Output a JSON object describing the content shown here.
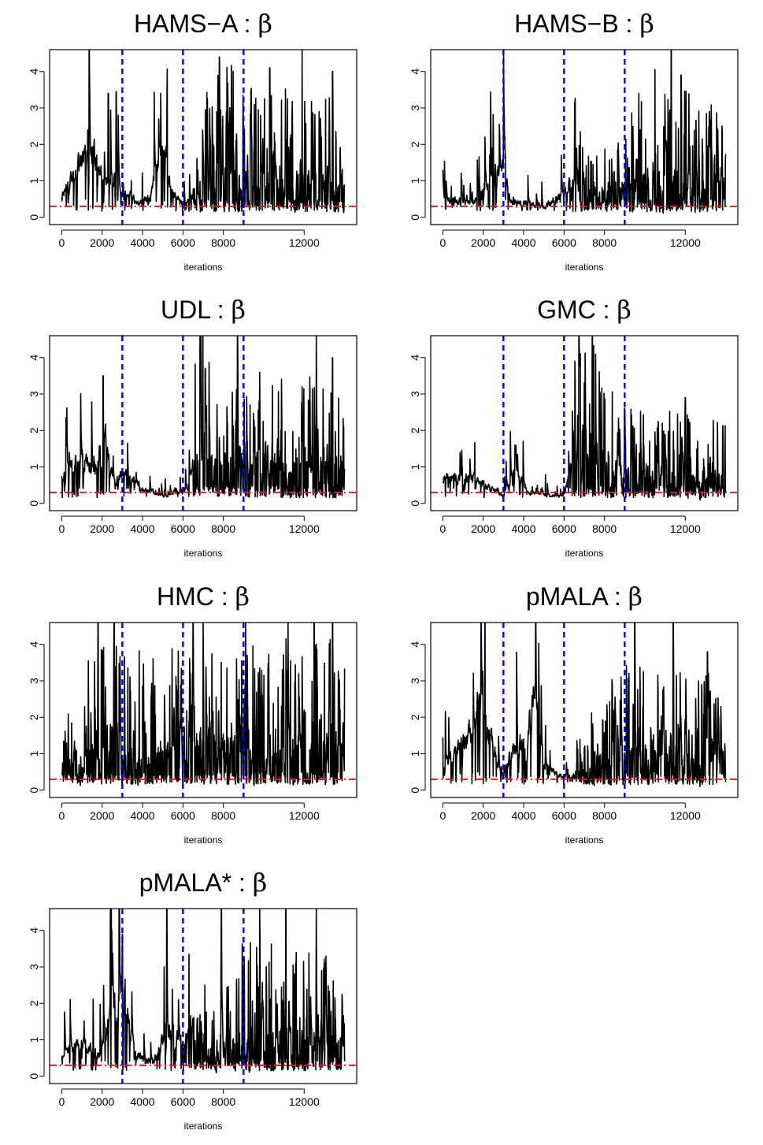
{
  "figure": {
    "type": "mcmc-trace-plots",
    "ref_line_color": "#e41a1c",
    "vline_color": "#0000ee",
    "trace_color": "#000000"
  },
  "chart_data": [
    {
      "type": "line",
      "title_prefix": "HAMS−A : ",
      "title_symbol": "β",
      "xlabel": "iterations",
      "ylabel": "",
      "xlim": [
        -600,
        14600
      ],
      "ylim": [
        -0.2,
        4.6
      ],
      "x_ticks": [
        0,
        2000,
        4000,
        6000,
        8000,
        12000
      ],
      "x_tick_labels": [
        "0",
        "2000",
        "4000",
        "6000",
        "8000",
        "12000"
      ],
      "y_ticks": [
        0,
        1,
        2,
        3,
        4
      ],
      "y_tick_labels": [
        "0",
        "1",
        "2",
        "3",
        "4"
      ],
      "vlines": [
        3000,
        6000,
        9000
      ],
      "hline": 0.3,
      "n_iter": 14000,
      "trace_profile": [
        [
          0,
          0.6
        ],
        [
          800,
          1.5
        ],
        [
          1500,
          1.9
        ],
        [
          2000,
          1.1
        ],
        [
          2600,
          1.0
        ],
        [
          3000,
          0.8
        ],
        [
          3800,
          0.4
        ],
        [
          4400,
          0.6
        ],
        [
          5000,
          2.2
        ],
        [
          5400,
          0.7
        ],
        [
          6000,
          0.3
        ],
        [
          7000,
          1.0
        ],
        [
          8000,
          1.4
        ],
        [
          9000,
          1.2
        ],
        [
          14000,
          1.1
        ]
      ],
      "trace_spikes": [
        [
          1300,
          2.4
        ],
        [
          2300,
          3.4
        ],
        [
          2700,
          3.45
        ],
        [
          4900,
          3.4
        ],
        [
          7800,
          4.4
        ],
        [
          10300,
          4.1
        ],
        [
          11900,
          4.6
        ],
        [
          13400,
          4.0
        ]
      ]
    },
    {
      "type": "line",
      "title_prefix": "HAMS−B : ",
      "title_symbol": "β",
      "xlabel": "iterations",
      "ylabel": "",
      "xlim": [
        -600,
        14600
      ],
      "ylim": [
        -0.2,
        4.6
      ],
      "x_ticks": [
        0,
        2000,
        4000,
        6000,
        8000,
        12000
      ],
      "x_tick_labels": [
        "0",
        "2000",
        "4000",
        "6000",
        "8000",
        "12000"
      ],
      "y_ticks": [
        0,
        1,
        2,
        3,
        4
      ],
      "y_tick_labels": [
        "0",
        "1",
        "2",
        "3",
        "4"
      ],
      "vlines": [
        3000,
        6000,
        9000
      ],
      "hline": 0.3,
      "n_iter": 14000,
      "trace_profile": [
        [
          0,
          0.5
        ],
        [
          1500,
          0.4
        ],
        [
          2500,
          1.2
        ],
        [
          3000,
          1.6
        ],
        [
          3300,
          0.5
        ],
        [
          5000,
          0.3
        ],
        [
          5800,
          0.6
        ],
        [
          6500,
          1.1
        ],
        [
          7000,
          0.5
        ],
        [
          9000,
          0.8
        ],
        [
          10000,
          1.2
        ],
        [
          14000,
          1.0
        ]
      ],
      "trace_spikes": [
        [
          0,
          1.3
        ],
        [
          2800,
          2.55
        ],
        [
          6600,
          1.9
        ],
        [
          10500,
          4.05
        ],
        [
          11300,
          4.6
        ],
        [
          11800,
          3.9
        ],
        [
          13200,
          2.9
        ]
      ]
    },
    {
      "type": "line",
      "title_prefix": "UDL : ",
      "title_symbol": "β",
      "xlabel": "iterations",
      "ylabel": "",
      "xlim": [
        -600,
        14600
      ],
      "ylim": [
        -0.2,
        4.6
      ],
      "x_ticks": [
        0,
        2000,
        4000,
        6000,
        8000,
        12000
      ],
      "x_tick_labels": [
        "0",
        "2000",
        "4000",
        "6000",
        "8000",
        "12000"
      ],
      "y_ticks": [
        0,
        1,
        2,
        3,
        4
      ],
      "y_tick_labels": [
        "0",
        "1",
        "2",
        "3",
        "4"
      ],
      "vlines": [
        3000,
        6000,
        9000
      ],
      "hline": 0.3,
      "n_iter": 14000,
      "trace_profile": [
        [
          0,
          0.7
        ],
        [
          900,
          1.4
        ],
        [
          1600,
          0.8
        ],
        [
          2100,
          2.0
        ],
        [
          2600,
          0.5
        ],
        [
          3000,
          0.9
        ],
        [
          4000,
          0.4
        ],
        [
          5200,
          0.2
        ],
        [
          6200,
          0.4
        ],
        [
          7000,
          2.2
        ],
        [
          7400,
          0.9
        ],
        [
          9000,
          1.0
        ],
        [
          14000,
          1.2
        ]
      ],
      "trace_spikes": [
        [
          2050,
          3.5
        ],
        [
          7100,
          3.7
        ],
        [
          8700,
          4.6
        ],
        [
          9800,
          3.6
        ],
        [
          11900,
          3.2
        ],
        [
          12600,
          4.6
        ],
        [
          13400,
          4.0
        ]
      ]
    },
    {
      "type": "line",
      "title_prefix": "GMC : ",
      "title_symbol": "β",
      "xlabel": "iterations",
      "ylabel": "",
      "xlim": [
        -600,
        14600
      ],
      "ylim": [
        -0.2,
        4.6
      ],
      "x_ticks": [
        0,
        2000,
        4000,
        6000,
        8000,
        12000
      ],
      "x_tick_labels": [
        "0",
        "2000",
        "4000",
        "6000",
        "8000",
        "12000"
      ],
      "y_ticks": [
        0,
        1,
        2,
        3,
        4
      ],
      "y_tick_labels": [
        "0",
        "1",
        "2",
        "3",
        "4"
      ],
      "vlines": [
        3000,
        6000,
        9000
      ],
      "hline": 0.3,
      "n_iter": 14000,
      "trace_profile": [
        [
          0,
          0.7
        ],
        [
          1500,
          0.7
        ],
        [
          3000,
          0.2
        ],
        [
          3600,
          1.0
        ],
        [
          4200,
          0.3
        ],
        [
          6000,
          0.2
        ],
        [
          6600,
          2.0
        ],
        [
          8000,
          1.0
        ],
        [
          9000,
          0.9
        ],
        [
          14000,
          0.7
        ]
      ],
      "trace_spikes": [
        [
          3600,
          1.6
        ],
        [
          6800,
          4.1
        ],
        [
          7000,
          3.3
        ],
        [
          7400,
          4.6
        ],
        [
          9000,
          2.6
        ],
        [
          12000,
          2.9
        ]
      ]
    },
    {
      "type": "line",
      "title_prefix": "HMC : ",
      "title_symbol": "β",
      "xlabel": "iterations",
      "ylabel": "",
      "xlim": [
        -600,
        14600
      ],
      "ylim": [
        -0.2,
        4.6
      ],
      "x_ticks": [
        0,
        2000,
        4000,
        6000,
        8000,
        12000
      ],
      "x_tick_labels": [
        "0",
        "2000",
        "4000",
        "6000",
        "8000",
        "12000"
      ],
      "y_ticks": [
        0,
        1,
        2,
        3,
        4
      ],
      "y_tick_labels": [
        "0",
        "1",
        "2",
        "3",
        "4"
      ],
      "vlines": [
        3000,
        6000,
        9000
      ],
      "hline": 0.3,
      "n_iter": 14000,
      "trace_profile": [
        [
          0,
          0.6
        ],
        [
          400,
          0.9
        ],
        [
          900,
          0.4
        ],
        [
          1400,
          1.3
        ],
        [
          14000,
          1.3
        ]
      ],
      "trace_spikes": [
        [
          1800,
          4.6
        ],
        [
          2600,
          4.6
        ],
        [
          6500,
          4.6
        ],
        [
          7000,
          4.6
        ],
        [
          9100,
          4.6
        ],
        [
          11200,
          4.6
        ],
        [
          12500,
          4.6
        ],
        [
          13400,
          4.6
        ]
      ]
    },
    {
      "type": "line",
      "title_prefix": "pMALA : ",
      "title_symbol": "β",
      "xlabel": "iterations",
      "ylabel": "",
      "xlim": [
        -600,
        14600
      ],
      "ylim": [
        -0.2,
        4.6
      ],
      "x_ticks": [
        0,
        2000,
        4000,
        6000,
        8000,
        12000
      ],
      "x_tick_labels": [
        "0",
        "2000",
        "4000",
        "6000",
        "8000",
        "12000"
      ],
      "y_ticks": [
        0,
        1,
        2,
        3,
        4
      ],
      "y_tick_labels": [
        "0",
        "1",
        "2",
        "3",
        "4"
      ],
      "vlines": [
        3000,
        6000,
        9000
      ],
      "hline": 0.3,
      "n_iter": 14000,
      "trace_profile": [
        [
          0,
          0.6
        ],
        [
          800,
          1.2
        ],
        [
          1600,
          1.8
        ],
        [
          1900,
          3.2
        ],
        [
          2300,
          1.6
        ],
        [
          2900,
          0.4
        ],
        [
          3400,
          1.0
        ],
        [
          4200,
          1.6
        ],
        [
          4500,
          2.8
        ],
        [
          5000,
          0.7
        ],
        [
          6000,
          0.3
        ],
        [
          7000,
          0.5
        ],
        [
          8000,
          1.0
        ],
        [
          9000,
          1.1
        ],
        [
          14000,
          1.0
        ]
      ],
      "trace_spikes": [
        [
          1900,
          4.6
        ],
        [
          4600,
          4.6
        ],
        [
          9500,
          4.6
        ],
        [
          11400,
          4.6
        ],
        [
          13100,
          3.8
        ]
      ]
    },
    {
      "type": "line",
      "title_prefix": "pMALA* : ",
      "title_symbol": "β",
      "xlabel": "iterations",
      "ylabel": "",
      "xlim": [
        -600,
        14600
      ],
      "ylim": [
        -0.2,
        4.6
      ],
      "x_ticks": [
        0,
        2000,
        4000,
        6000,
        8000,
        12000
      ],
      "x_tick_labels": [
        "0",
        "2000",
        "4000",
        "6000",
        "8000",
        "12000"
      ],
      "y_ticks": [
        0,
        1,
        2,
        3,
        4
      ],
      "y_tick_labels": [
        "0",
        "1",
        "2",
        "3",
        "4"
      ],
      "vlines": [
        3000,
        6000,
        9000
      ],
      "hline": 0.3,
      "n_iter": 14000,
      "trace_profile": [
        [
          0,
          0.6
        ],
        [
          900,
          1.0
        ],
        [
          1800,
          0.6
        ],
        [
          3000,
          2.8
        ],
        [
          3600,
          0.6
        ],
        [
          4500,
          0.4
        ],
        [
          5200,
          1.2
        ],
        [
          6000,
          1.0
        ],
        [
          6700,
          2.0
        ],
        [
          7200,
          0.6
        ],
        [
          8000,
          1.0
        ],
        [
          9000,
          1.2
        ],
        [
          14000,
          1.0
        ]
      ],
      "trace_spikes": [
        [
          3000,
          3.9
        ],
        [
          5200,
          4.6
        ],
        [
          7900,
          4.6
        ],
        [
          9800,
          4.6
        ],
        [
          11100,
          4.6
        ],
        [
          12600,
          4.6
        ]
      ]
    }
  ]
}
